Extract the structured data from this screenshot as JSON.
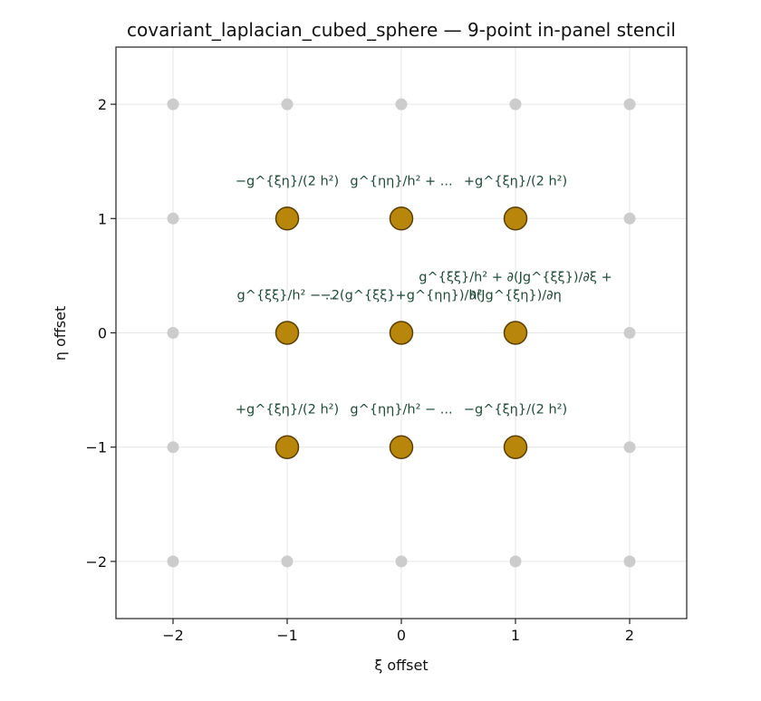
{
  "chart_data": {
    "type": "scatter",
    "title": "covariant_laplacian_cubed_sphere — 9-point in-panel stencil",
    "xlabel": "ξ offset",
    "ylabel": "η offset",
    "xlim": [
      -2.5,
      2.5
    ],
    "ylim": [
      -2.5,
      2.5
    ],
    "xticks": [
      -2,
      -1,
      0,
      1,
      2
    ],
    "yticks": [
      -2,
      -1,
      0,
      1,
      2
    ],
    "xtick_labels": [
      "−2",
      "−1",
      "0",
      "1",
      "2"
    ],
    "ytick_labels": [
      "−2",
      "−1",
      "0",
      "1",
      "2"
    ],
    "grid": true,
    "background_points": {
      "color": "#cccccc",
      "points": [
        {
          "x": -2,
          "y": 2
        },
        {
          "x": -1,
          "y": 2
        },
        {
          "x": 0,
          "y": 2
        },
        {
          "x": 1,
          "y": 2
        },
        {
          "x": 2,
          "y": 2
        },
        {
          "x": -2,
          "y": 1
        },
        {
          "x": 2,
          "y": 1
        },
        {
          "x": -2,
          "y": 0
        },
        {
          "x": 2,
          "y": 0
        },
        {
          "x": -2,
          "y": -1
        },
        {
          "x": 2,
          "y": -1
        },
        {
          "x": -2,
          "y": -2
        },
        {
          "x": -1,
          "y": -2
        },
        {
          "x": 0,
          "y": -2
        },
        {
          "x": 1,
          "y": -2
        },
        {
          "x": 2,
          "y": -2
        }
      ]
    },
    "stencil_points": {
      "fill": "#b8860b",
      "edge": "#5a3f05",
      "label_color": "#1f4a38",
      "points": [
        {
          "x": -1,
          "y": 1,
          "label": "−g^{ξη}/(2 h²)"
        },
        {
          "x": 0,
          "y": 1,
          "label": "g^{ηη}/h² + ..."
        },
        {
          "x": 1,
          "y": 1,
          "label": "+g^{ξη}/(2 h²)"
        },
        {
          "x": -1,
          "y": 0,
          "label": "g^{ξξ}/h² − ..."
        },
        {
          "x": 0,
          "y": 0,
          "label": "−2(g^{ξξ}+g^{ηη})/h²"
        },
        {
          "x": 1,
          "y": 0,
          "label": "g^{ξξ}/h² + ∂(Jg^{ξξ})/∂ξ + ∂(Jg^{ξη})/∂η"
        },
        {
          "x": -1,
          "y": -1,
          "label": "+g^{ξη}/(2 h²)"
        },
        {
          "x": 0,
          "y": -1,
          "label": "g^{ηη}/h² − ..."
        },
        {
          "x": 1,
          "y": -1,
          "label": "−g^{ξη}/(2 h²)"
        }
      ]
    }
  }
}
